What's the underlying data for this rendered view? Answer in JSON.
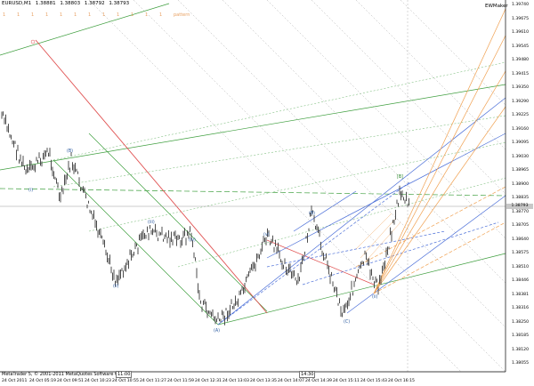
{
  "window": {
    "symbol": "EURUSD,M1",
    "ohlc": [
      "1.38881",
      "1.38803",
      "1.38792",
      "1.38793"
    ],
    "indicator": "EWMaker"
  },
  "fib_levels": [
    "1",
    "1",
    "1",
    "1",
    "1",
    "1",
    "1",
    "1",
    "1",
    "1",
    "1",
    "1"
  ],
  "fib_tag": "pattern",
  "copyright": "MetaTrader 5, © 2001-2011 MetaQuotes Software Corp.",
  "time_markers": [
    "11:00",
    "14:30"
  ],
  "price_axis": [
    "1.39740",
    "1.39675",
    "1.39610",
    "1.39545",
    "1.39480",
    "1.39415",
    "1.39350",
    "1.39290",
    "1.39225",
    "1.39160",
    "1.39095",
    "1.39030",
    "1.38965",
    "1.38900",
    "1.38835",
    "1.38770",
    "1.38705",
    "1.38640",
    "1.38575",
    "1.38510",
    "1.38446",
    "1.38381",
    "1.38316",
    "1.38250",
    "1.38185",
    "1.38120",
    "1.38055"
  ],
  "current_price": "1.38793",
  "time_axis": [
    "24 Oct 2011",
    "24 Oct 05:19",
    "24 Oct 09:51",
    "24 Oct 10:23",
    "24 Oct 10:55",
    "24 Oct 11:27",
    "24 Oct 11:59",
    "24 Oct 12:31",
    "24 Oct 13:03",
    "24 Oct 13:35",
    "24 Oct 14:07",
    "24 Oct 14:39",
    "24 Oct 15:11",
    "24 Oct 15:43",
    "24 Oct 16:15"
  ],
  "wave_labels": [
    "(i)",
    "(ii)",
    "(iii)",
    "(iv)",
    "(v)",
    "(A)",
    "(B)",
    "(C)",
    "(ii)",
    "(B)",
    "[B]"
  ],
  "colors": {
    "bars": "#3a3a3a",
    "grid_green": "#3f9f3f",
    "fib_orange": "#f0a050",
    "fork_blue": "#4a6ed8",
    "red_line": "#e05050"
  }
}
